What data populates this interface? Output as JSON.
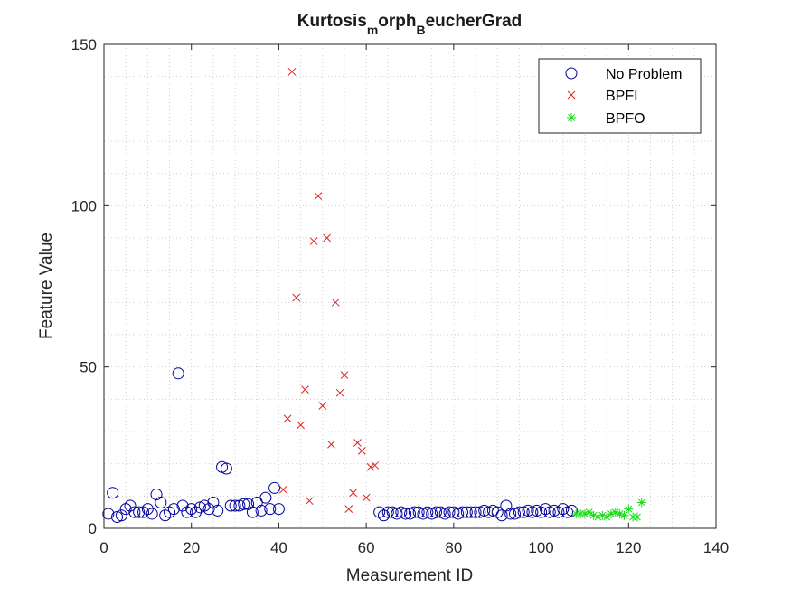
{
  "chart_data": {
    "type": "scatter",
    "title": {
      "base": "Kurtosis",
      "sub1": "m",
      "mid": "orph",
      "sub2": "B",
      "tail": "eucherGrad"
    },
    "xlabel": "Measurement ID",
    "ylabel": "Feature Value",
    "xlim": [
      0,
      140
    ],
    "ylim": [
      0,
      150
    ],
    "xticks": [
      0,
      20,
      40,
      60,
      80,
      100,
      120,
      140
    ],
    "yticks": [
      0,
      50,
      100,
      150
    ],
    "grid": "minor",
    "legend_position": "top-right",
    "series": [
      {
        "name": "No Problem",
        "marker": "circle",
        "color": "#0000A0",
        "points": [
          [
            1,
            4.5
          ],
          [
            2,
            11
          ],
          [
            3,
            3.5
          ],
          [
            4,
            4
          ],
          [
            5,
            6
          ],
          [
            6,
            7
          ],
          [
            7,
            5
          ],
          [
            8,
            5
          ],
          [
            9,
            5
          ],
          [
            10,
            6
          ],
          [
            11,
            4.5
          ],
          [
            12,
            10.5
          ],
          [
            13,
            8
          ],
          [
            14,
            4
          ],
          [
            15,
            5
          ],
          [
            16,
            6
          ],
          [
            17,
            48
          ],
          [
            18,
            7
          ],
          [
            19,
            5
          ],
          [
            20,
            6
          ],
          [
            21,
            5
          ],
          [
            22,
            6.5
          ],
          [
            23,
            7
          ],
          [
            24,
            6
          ],
          [
            25,
            8
          ],
          [
            26,
            5.5
          ],
          [
            27,
            19
          ],
          [
            28,
            18.5
          ],
          [
            29,
            7
          ],
          [
            30,
            7
          ],
          [
            31,
            7
          ],
          [
            32,
            7.5
          ],
          [
            33,
            7.5
          ],
          [
            34,
            5
          ],
          [
            35,
            8
          ],
          [
            36,
            5.5
          ],
          [
            37,
            9.5
          ],
          [
            38,
            6
          ],
          [
            39,
            12.5
          ],
          [
            40,
            6
          ],
          [
            63,
            5
          ],
          [
            64,
            4
          ],
          [
            65,
            5
          ],
          [
            66,
            5
          ],
          [
            67,
            4.5
          ],
          [
            68,
            5
          ],
          [
            69,
            4.5
          ],
          [
            70,
            4.5
          ],
          [
            71,
            5
          ],
          [
            72,
            5
          ],
          [
            73,
            4.5
          ],
          [
            74,
            5
          ],
          [
            75,
            4.5
          ],
          [
            76,
            5
          ],
          [
            77,
            5
          ],
          [
            78,
            4.5
          ],
          [
            79,
            5
          ],
          [
            80,
            5
          ],
          [
            81,
            4.5
          ],
          [
            82,
            5
          ],
          [
            83,
            5
          ],
          [
            84,
            5
          ],
          [
            85,
            5
          ],
          [
            86,
            5
          ],
          [
            87,
            5.5
          ],
          [
            88,
            5
          ],
          [
            89,
            5.5
          ],
          [
            90,
            5
          ],
          [
            91,
            4
          ],
          [
            92,
            7
          ],
          [
            93,
            4.5
          ],
          [
            94,
            4.5
          ],
          [
            95,
            5
          ],
          [
            96,
            5
          ],
          [
            97,
            5.5
          ],
          [
            98,
            5
          ],
          [
            99,
            5.5
          ],
          [
            100,
            5
          ],
          [
            101,
            6
          ],
          [
            102,
            5
          ],
          [
            103,
            5.5
          ],
          [
            104,
            5
          ],
          [
            105,
            6
          ],
          [
            106,
            5
          ],
          [
            107,
            5.5
          ]
        ]
      },
      {
        "name": "BPFI",
        "marker": "x",
        "color": "#E02020",
        "points": [
          [
            41,
            12
          ],
          [
            42,
            34
          ],
          [
            43,
            141.5
          ],
          [
            44,
            71.5
          ],
          [
            45,
            32
          ],
          [
            46,
            43
          ],
          [
            47,
            8.5
          ],
          [
            48,
            89
          ],
          [
            49,
            103
          ],
          [
            50,
            38
          ],
          [
            51,
            90
          ],
          [
            52,
            26
          ],
          [
            53,
            70
          ],
          [
            54,
            42
          ],
          [
            55,
            47.5
          ],
          [
            56,
            6
          ],
          [
            57,
            11
          ],
          [
            58,
            26.5
          ],
          [
            59,
            24
          ],
          [
            60,
            9.5
          ],
          [
            61,
            19
          ],
          [
            62,
            19.5
          ]
        ]
      },
      {
        "name": "BPFO",
        "marker": "star",
        "color": "#11E011",
        "points": [
          [
            108,
            4.5
          ],
          [
            109,
            4.5
          ],
          [
            110,
            4.5
          ],
          [
            111,
            5
          ],
          [
            112,
            4
          ],
          [
            113,
            3.5
          ],
          [
            114,
            4
          ],
          [
            115,
            3.5
          ],
          [
            116,
            4.5
          ],
          [
            117,
            5
          ],
          [
            118,
            4.5
          ],
          [
            119,
            4
          ],
          [
            120,
            6
          ],
          [
            121,
            3.5
          ],
          [
            122,
            3.5
          ],
          [
            123,
            8
          ]
        ]
      }
    ]
  }
}
